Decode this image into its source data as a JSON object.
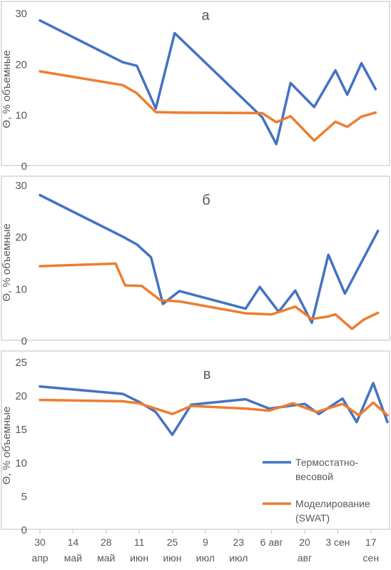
{
  "colors": {
    "series1": "#4472c4",
    "series2": "#ed7d31",
    "axis": "#bfbfbf",
    "text": "#595959"
  },
  "legend": {
    "series1_line1": "Термостатно-",
    "series1_line2": "весовой",
    "series2_line1": "Моделирование",
    "series2_line2": "(SWAT)"
  },
  "x_tick_labels": [
    {
      "d": 0,
      "line1": "30",
      "line2": "апр"
    },
    {
      "d": 14,
      "line1": "14",
      "line2": "май"
    },
    {
      "d": 28,
      "line1": "28",
      "line2": "май"
    },
    {
      "d": 42,
      "line1": "11",
      "line2": "июн"
    },
    {
      "d": 56,
      "line1": "25",
      "line2": "июн"
    },
    {
      "d": 70,
      "line1": "9",
      "line2": "июл"
    },
    {
      "d": 84,
      "line1": "23",
      "line2": "июл"
    },
    {
      "d": 98,
      "line1": "6 авг",
      "line2": ""
    },
    {
      "d": 112,
      "line1": "20",
      "line2": "авг"
    },
    {
      "d": 126,
      "line1": "3 сен",
      "line2": ""
    },
    {
      "d": 140,
      "line1": "17",
      "line2": "сен"
    }
  ],
  "chart_data": [
    {
      "type": "line",
      "panel": "a",
      "title": "а",
      "ylabel": "Θ, % объемные",
      "ylim": [
        0,
        30
      ],
      "yticks": [
        0,
        10,
        20,
        30
      ],
      "series": [
        {
          "name": "Термостатно-весовой",
          "x": [
            "2019-04-30",
            "2019-06-04",
            "2019-06-10",
            "2019-06-18",
            "2019-06-26",
            "2019-08-02",
            "2019-08-08",
            "2019-08-14",
            "2019-08-24",
            "2019-09-02",
            "2019-09-07",
            "2019-09-13",
            "2019-09-19"
          ],
          "values": [
            28.5,
            20.3,
            19.6,
            11.2,
            26.0,
            9.5,
            4.2,
            16.2,
            11.5,
            18.7,
            13.9,
            20.1,
            15.0
          ]
        },
        {
          "name": "Моделирование (SWAT)",
          "x": [
            "2019-04-30",
            "2019-06-04",
            "2019-06-10",
            "2019-06-18",
            "2019-06-26",
            "2019-08-02",
            "2019-08-08",
            "2019-08-14",
            "2019-08-24",
            "2019-09-02",
            "2019-09-07",
            "2019-09-13",
            "2019-09-19"
          ],
          "values": [
            18.5,
            15.8,
            14.2,
            10.5,
            10.4,
            10.3,
            8.5,
            9.7,
            4.9,
            8.6,
            7.6,
            9.6,
            10.4
          ]
        }
      ]
    },
    {
      "type": "line",
      "panel": "b",
      "title": "б",
      "ylabel": "Θ, % объемные",
      "ylim": [
        0,
        30
      ],
      "yticks": [
        0,
        10,
        20,
        30
      ],
      "series": [
        {
          "name": "Термостатно-весовой",
          "x": [
            "2019-04-30",
            "2019-06-04",
            "2019-06-10",
            "2019-06-16",
            "2019-06-21",
            "2019-06-28",
            "2019-07-26",
            "2019-08-01",
            "2019-08-09",
            "2019-08-16",
            "2019-08-23",
            "2019-08-30",
            "2019-09-06",
            "2019-09-20"
          ],
          "values": [
            28.0,
            20.0,
            18.5,
            16.0,
            7.0,
            9.5,
            6.1,
            10.3,
            5.5,
            9.6,
            3.4,
            16.5,
            9.0,
            21.1
          ]
        },
        {
          "name": "Моделирование (SWAT)",
          "x": [
            "2019-04-30",
            "2019-06-01",
            "2019-06-05",
            "2019-06-12",
            "2019-06-20",
            "2019-06-28",
            "2019-07-26",
            "2019-08-06",
            "2019-08-16",
            "2019-08-23",
            "2019-08-30",
            "2019-09-02",
            "2019-09-09",
            "2019-09-14",
            "2019-09-20"
          ],
          "values": [
            14.3,
            14.8,
            10.6,
            10.5,
            7.7,
            7.5,
            5.2,
            5.0,
            6.5,
            4.1,
            4.6,
            5.0,
            2.2,
            4.0,
            5.3
          ]
        }
      ]
    },
    {
      "type": "line",
      "panel": "c",
      "title": "в",
      "ylabel": "Θ, % объемные",
      "ylim": [
        0,
        25
      ],
      "yticks": [
        0,
        5,
        10,
        15,
        20,
        25
      ],
      "series": [
        {
          "name": "Термостатно-весовой",
          "x": [
            "2019-04-30",
            "2019-06-04",
            "2019-06-11",
            "2019-06-18",
            "2019-06-25",
            "2019-07-03",
            "2019-07-26",
            "2019-08-05",
            "2019-08-20",
            "2019-08-26",
            "2019-09-05",
            "2019-09-11",
            "2019-09-18",
            "2019-09-24"
          ],
          "values": [
            21.3,
            20.2,
            19.0,
            17.5,
            14.1,
            18.6,
            19.4,
            18.0,
            18.7,
            17.2,
            19.5,
            16.0,
            21.8,
            16.0
          ]
        },
        {
          "name": "Моделирование (SWAT)",
          "x": [
            "2019-04-30",
            "2019-06-04",
            "2019-06-11",
            "2019-06-25",
            "2019-07-03",
            "2019-07-26",
            "2019-08-05",
            "2019-08-15",
            "2019-08-25",
            "2019-09-05",
            "2019-09-12",
            "2019-09-18",
            "2019-09-24"
          ],
          "values": [
            19.3,
            19.1,
            18.8,
            17.2,
            18.4,
            18.0,
            17.7,
            18.8,
            17.5,
            18.7,
            17.0,
            18.9,
            17.0
          ]
        }
      ]
    }
  ]
}
